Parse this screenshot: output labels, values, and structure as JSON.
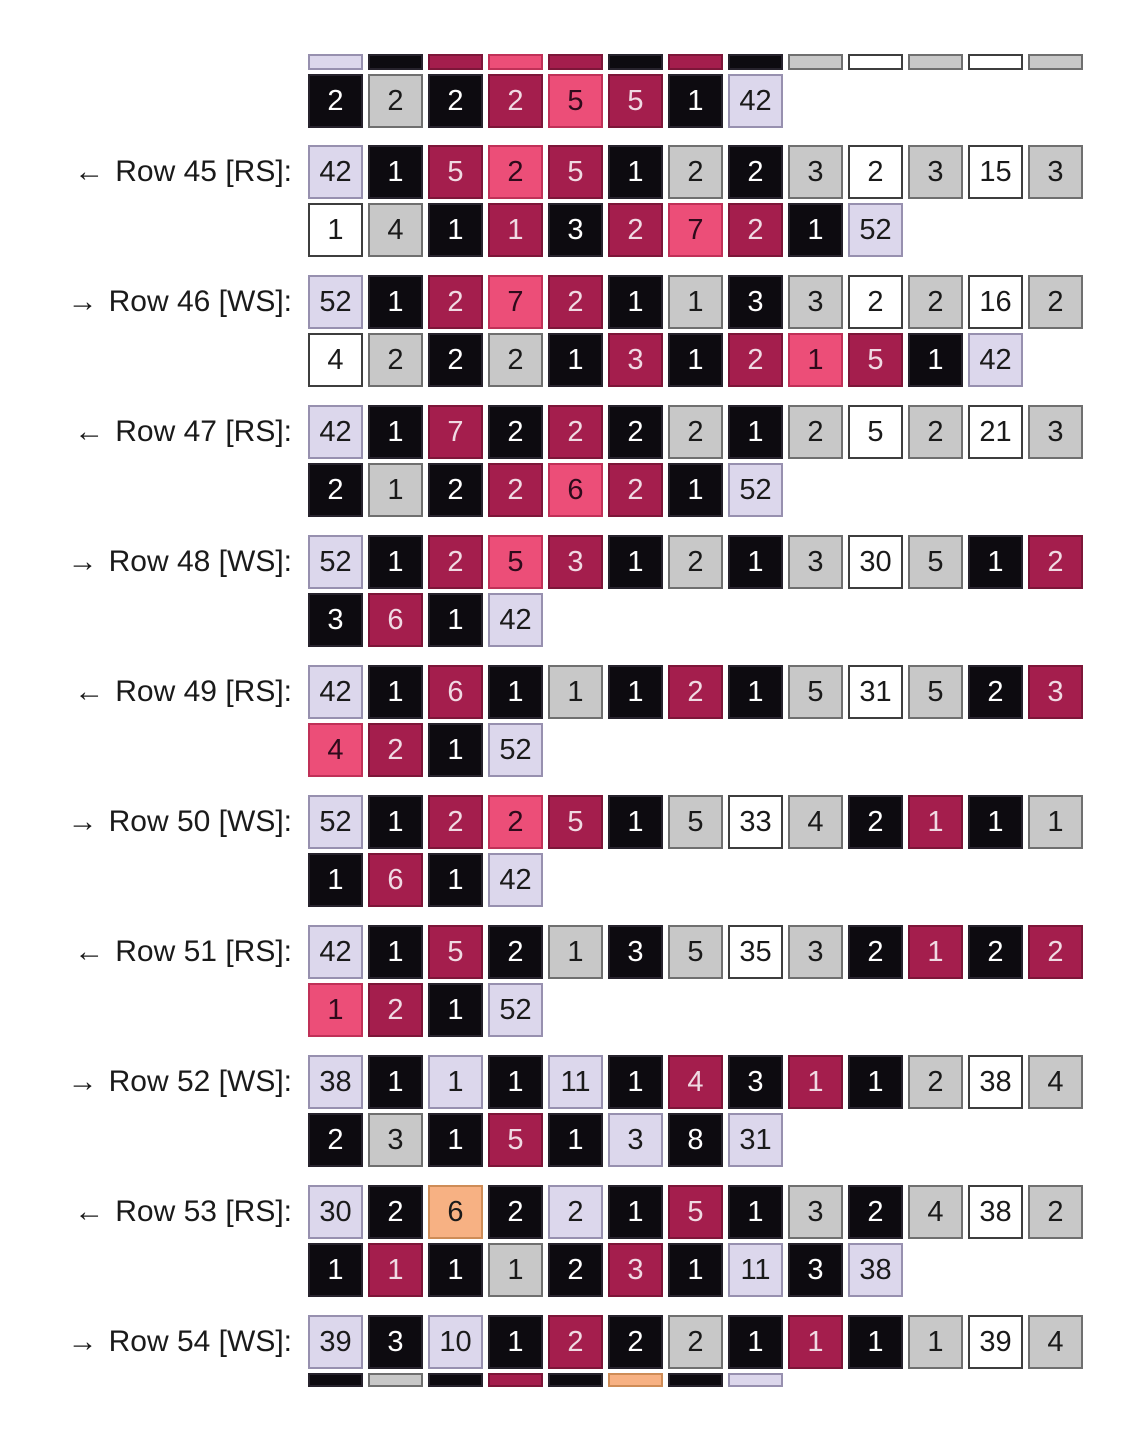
{
  "page": {
    "background": "#ffffff",
    "description": "Knitting colorwork written-chart: stitch-count boxes per row"
  },
  "palette": {
    "lavender": {
      "fill": "#DCD7EC",
      "border": "#9790AF",
      "text": "#1a1a1a"
    },
    "black": {
      "fill": "#0D0B10",
      "border": "#26222C",
      "text": "#FFFFFF"
    },
    "gray": {
      "fill": "#C8C8C8",
      "border": "#6F6F6F",
      "text": "#1a1a1a"
    },
    "white": {
      "fill": "#FFFFFF",
      "border": "#3E3E3E",
      "text": "#1a1a1a"
    },
    "darkred": {
      "fill": "#A41E4D",
      "border": "#7D1639",
      "text": "#F0DAE3"
    },
    "pink": {
      "fill": "#EC4E78",
      "border": "#C03158",
      "text": "#2E0A1B"
    },
    "orange": {
      "fill": "#F7B183",
      "border": "#CE8C57",
      "text": "#1a1a1a"
    }
  },
  "groups": [
    {
      "partial_top": true,
      "arrow": "",
      "label": "",
      "lines": [
        {
          "sliver": true,
          "cells": [
            [
              "",
              "lavender"
            ],
            [
              "",
              "black"
            ],
            [
              "",
              "darkred"
            ],
            [
              "",
              "pink"
            ],
            [
              "",
              "darkred"
            ],
            [
              "",
              "black"
            ],
            [
              "",
              "darkred"
            ],
            [
              "",
              "black"
            ],
            [
              "",
              "gray"
            ],
            [
              "",
              "white"
            ],
            [
              "",
              "gray"
            ],
            [
              "",
              "white"
            ],
            [
              "",
              "gray"
            ]
          ]
        },
        {
          "cells": [
            [
              "2",
              "black"
            ],
            [
              "2",
              "gray"
            ],
            [
              "2",
              "black"
            ],
            [
              "2",
              "darkred"
            ],
            [
              "5",
              "pink"
            ],
            [
              "5",
              "darkred"
            ],
            [
              "1",
              "black"
            ],
            [
              "42",
              "lavender"
            ]
          ]
        }
      ]
    },
    {
      "arrow": "←",
      "label": "Row 45 [RS]:",
      "lines": [
        {
          "cells": [
            [
              "42",
              "lavender"
            ],
            [
              "1",
              "black"
            ],
            [
              "5",
              "darkred"
            ],
            [
              "2",
              "pink"
            ],
            [
              "5",
              "darkred"
            ],
            [
              "1",
              "black"
            ],
            [
              "2",
              "gray"
            ],
            [
              "2",
              "black"
            ],
            [
              "3",
              "gray"
            ],
            [
              "2",
              "white"
            ],
            [
              "3",
              "gray"
            ],
            [
              "15",
              "white"
            ],
            [
              "3",
              "gray"
            ]
          ]
        },
        {
          "cells": [
            [
              "1",
              "white"
            ],
            [
              "4",
              "gray"
            ],
            [
              "1",
              "black"
            ],
            [
              "1",
              "darkred"
            ],
            [
              "3",
              "black"
            ],
            [
              "2",
              "darkred"
            ],
            [
              "7",
              "pink"
            ],
            [
              "2",
              "darkred"
            ],
            [
              "1",
              "black"
            ],
            [
              "52",
              "lavender"
            ]
          ]
        }
      ]
    },
    {
      "arrow": "→",
      "label": "Row 46 [WS]:",
      "lines": [
        {
          "cells": [
            [
              "52",
              "lavender"
            ],
            [
              "1",
              "black"
            ],
            [
              "2",
              "darkred"
            ],
            [
              "7",
              "pink"
            ],
            [
              "2",
              "darkred"
            ],
            [
              "1",
              "black"
            ],
            [
              "1",
              "gray"
            ],
            [
              "3",
              "black"
            ],
            [
              "3",
              "gray"
            ],
            [
              "2",
              "white"
            ],
            [
              "2",
              "gray"
            ],
            [
              "16",
              "white"
            ],
            [
              "2",
              "gray"
            ]
          ]
        },
        {
          "cells": [
            [
              "4",
              "white"
            ],
            [
              "2",
              "gray"
            ],
            [
              "2",
              "black"
            ],
            [
              "2",
              "gray"
            ],
            [
              "1",
              "black"
            ],
            [
              "3",
              "darkred"
            ],
            [
              "1",
              "black"
            ],
            [
              "2",
              "darkred"
            ],
            [
              "1",
              "pink"
            ],
            [
              "5",
              "darkred"
            ],
            [
              "1",
              "black"
            ],
            [
              "42",
              "lavender"
            ]
          ]
        }
      ]
    },
    {
      "arrow": "←",
      "label": "Row 47 [RS]:",
      "lines": [
        {
          "cells": [
            [
              "42",
              "lavender"
            ],
            [
              "1",
              "black"
            ],
            [
              "7",
              "darkred"
            ],
            [
              "2",
              "black"
            ],
            [
              "2",
              "darkred"
            ],
            [
              "2",
              "black"
            ],
            [
              "2",
              "gray"
            ],
            [
              "1",
              "black"
            ],
            [
              "2",
              "gray"
            ],
            [
              "5",
              "white"
            ],
            [
              "2",
              "gray"
            ],
            [
              "21",
              "white"
            ],
            [
              "3",
              "gray"
            ]
          ]
        },
        {
          "cells": [
            [
              "2",
              "black"
            ],
            [
              "1",
              "gray"
            ],
            [
              "2",
              "black"
            ],
            [
              "2",
              "darkred"
            ],
            [
              "6",
              "pink"
            ],
            [
              "2",
              "darkred"
            ],
            [
              "1",
              "black"
            ],
            [
              "52",
              "lavender"
            ]
          ]
        }
      ]
    },
    {
      "arrow": "→",
      "label": "Row 48 [WS]:",
      "lines": [
        {
          "cells": [
            [
              "52",
              "lavender"
            ],
            [
              "1",
              "black"
            ],
            [
              "2",
              "darkred"
            ],
            [
              "5",
              "pink"
            ],
            [
              "3",
              "darkred"
            ],
            [
              "1",
              "black"
            ],
            [
              "2",
              "gray"
            ],
            [
              "1",
              "black"
            ],
            [
              "3",
              "gray"
            ],
            [
              "30",
              "white"
            ],
            [
              "5",
              "gray"
            ],
            [
              "1",
              "black"
            ],
            [
              "2",
              "darkred"
            ]
          ]
        },
        {
          "cells": [
            [
              "3",
              "black"
            ],
            [
              "6",
              "darkred"
            ],
            [
              "1",
              "black"
            ],
            [
              "42",
              "lavender"
            ]
          ]
        }
      ]
    },
    {
      "arrow": "←",
      "label": "Row 49 [RS]:",
      "lines": [
        {
          "cells": [
            [
              "42",
              "lavender"
            ],
            [
              "1",
              "black"
            ],
            [
              "6",
              "darkred"
            ],
            [
              "1",
              "black"
            ],
            [
              "1",
              "gray"
            ],
            [
              "1",
              "black"
            ],
            [
              "2",
              "darkred"
            ],
            [
              "1",
              "black"
            ],
            [
              "5",
              "gray"
            ],
            [
              "31",
              "white"
            ],
            [
              "5",
              "gray"
            ],
            [
              "2",
              "black"
            ],
            [
              "3",
              "darkred"
            ]
          ]
        },
        {
          "cells": [
            [
              "4",
              "pink"
            ],
            [
              "2",
              "darkred"
            ],
            [
              "1",
              "black"
            ],
            [
              "52",
              "lavender"
            ]
          ]
        }
      ]
    },
    {
      "arrow": "→",
      "label": "Row 50 [WS]:",
      "lines": [
        {
          "cells": [
            [
              "52",
              "lavender"
            ],
            [
              "1",
              "black"
            ],
            [
              "2",
              "darkred"
            ],
            [
              "2",
              "pink"
            ],
            [
              "5",
              "darkred"
            ],
            [
              "1",
              "black"
            ],
            [
              "5",
              "gray"
            ],
            [
              "33",
              "white"
            ],
            [
              "4",
              "gray"
            ],
            [
              "2",
              "black"
            ],
            [
              "1",
              "darkred"
            ],
            [
              "1",
              "black"
            ],
            [
              "1",
              "gray"
            ]
          ]
        },
        {
          "cells": [
            [
              "1",
              "black"
            ],
            [
              "6",
              "darkred"
            ],
            [
              "1",
              "black"
            ],
            [
              "42",
              "lavender"
            ]
          ]
        }
      ]
    },
    {
      "arrow": "←",
      "label": "Row 51 [RS]:",
      "lines": [
        {
          "cells": [
            [
              "42",
              "lavender"
            ],
            [
              "1",
              "black"
            ],
            [
              "5",
              "darkred"
            ],
            [
              "2",
              "black"
            ],
            [
              "1",
              "gray"
            ],
            [
              "3",
              "black"
            ],
            [
              "5",
              "gray"
            ],
            [
              "35",
              "white"
            ],
            [
              "3",
              "gray"
            ],
            [
              "2",
              "black"
            ],
            [
              "1",
              "darkred"
            ],
            [
              "2",
              "black"
            ],
            [
              "2",
              "darkred"
            ]
          ]
        },
        {
          "cells": [
            [
              "1",
              "pink"
            ],
            [
              "2",
              "darkred"
            ],
            [
              "1",
              "black"
            ],
            [
              "52",
              "lavender"
            ]
          ]
        }
      ]
    },
    {
      "arrow": "→",
      "label": "Row 52 [WS]:",
      "lines": [
        {
          "cells": [
            [
              "38",
              "lavender"
            ],
            [
              "1",
              "black"
            ],
            [
              "1",
              "lavender"
            ],
            [
              "1",
              "black"
            ],
            [
              "11",
              "lavender"
            ],
            [
              "1",
              "black"
            ],
            [
              "4",
              "darkred"
            ],
            [
              "3",
              "black"
            ],
            [
              "1",
              "darkred"
            ],
            [
              "1",
              "black"
            ],
            [
              "2",
              "gray"
            ],
            [
              "38",
              "white"
            ],
            [
              "4",
              "gray"
            ]
          ]
        },
        {
          "cells": [
            [
              "2",
              "black"
            ],
            [
              "3",
              "gray"
            ],
            [
              "1",
              "black"
            ],
            [
              "5",
              "darkred"
            ],
            [
              "1",
              "black"
            ],
            [
              "3",
              "lavender"
            ],
            [
              "8",
              "black"
            ],
            [
              "31",
              "lavender"
            ]
          ]
        }
      ]
    },
    {
      "arrow": "←",
      "label": "Row 53 [RS]:",
      "lines": [
        {
          "cells": [
            [
              "30",
              "lavender"
            ],
            [
              "2",
              "black"
            ],
            [
              "6",
              "orange"
            ],
            [
              "2",
              "black"
            ],
            [
              "2",
              "lavender"
            ],
            [
              "1",
              "black"
            ],
            [
              "5",
              "darkred"
            ],
            [
              "1",
              "black"
            ],
            [
              "3",
              "gray"
            ],
            [
              "2",
              "black"
            ],
            [
              "4",
              "gray"
            ],
            [
              "38",
              "white"
            ],
            [
              "2",
              "gray"
            ]
          ]
        },
        {
          "cells": [
            [
              "1",
              "black"
            ],
            [
              "1",
              "darkred"
            ],
            [
              "1",
              "black"
            ],
            [
              "1",
              "gray"
            ],
            [
              "2",
              "black"
            ],
            [
              "3",
              "darkred"
            ],
            [
              "1",
              "black"
            ],
            [
              "11",
              "lavender"
            ],
            [
              "3",
              "black"
            ],
            [
              "38",
              "lavender"
            ]
          ]
        }
      ]
    },
    {
      "arrow": "→",
      "label": "Row 54 [WS]:",
      "lines": [
        {
          "cells": [
            [
              "39",
              "lavender"
            ],
            [
              "3",
              "black"
            ],
            [
              "10",
              "lavender"
            ],
            [
              "1",
              "black"
            ],
            [
              "2",
              "darkred"
            ],
            [
              "2",
              "black"
            ],
            [
              "2",
              "gray"
            ],
            [
              "1",
              "black"
            ],
            [
              "1",
              "darkred"
            ],
            [
              "1",
              "black"
            ],
            [
              "1",
              "gray"
            ],
            [
              "39",
              "white"
            ],
            [
              "4",
              "gray"
            ]
          ]
        },
        {
          "sliver": true,
          "cells": [
            [
              "",
              "black"
            ],
            [
              "",
              "gray"
            ],
            [
              "",
              "black"
            ],
            [
              "",
              "darkred"
            ],
            [
              "",
              "black"
            ],
            [
              "",
              "orange"
            ],
            [
              "",
              "black"
            ],
            [
              "",
              "lavender"
            ]
          ]
        }
      ]
    }
  ]
}
